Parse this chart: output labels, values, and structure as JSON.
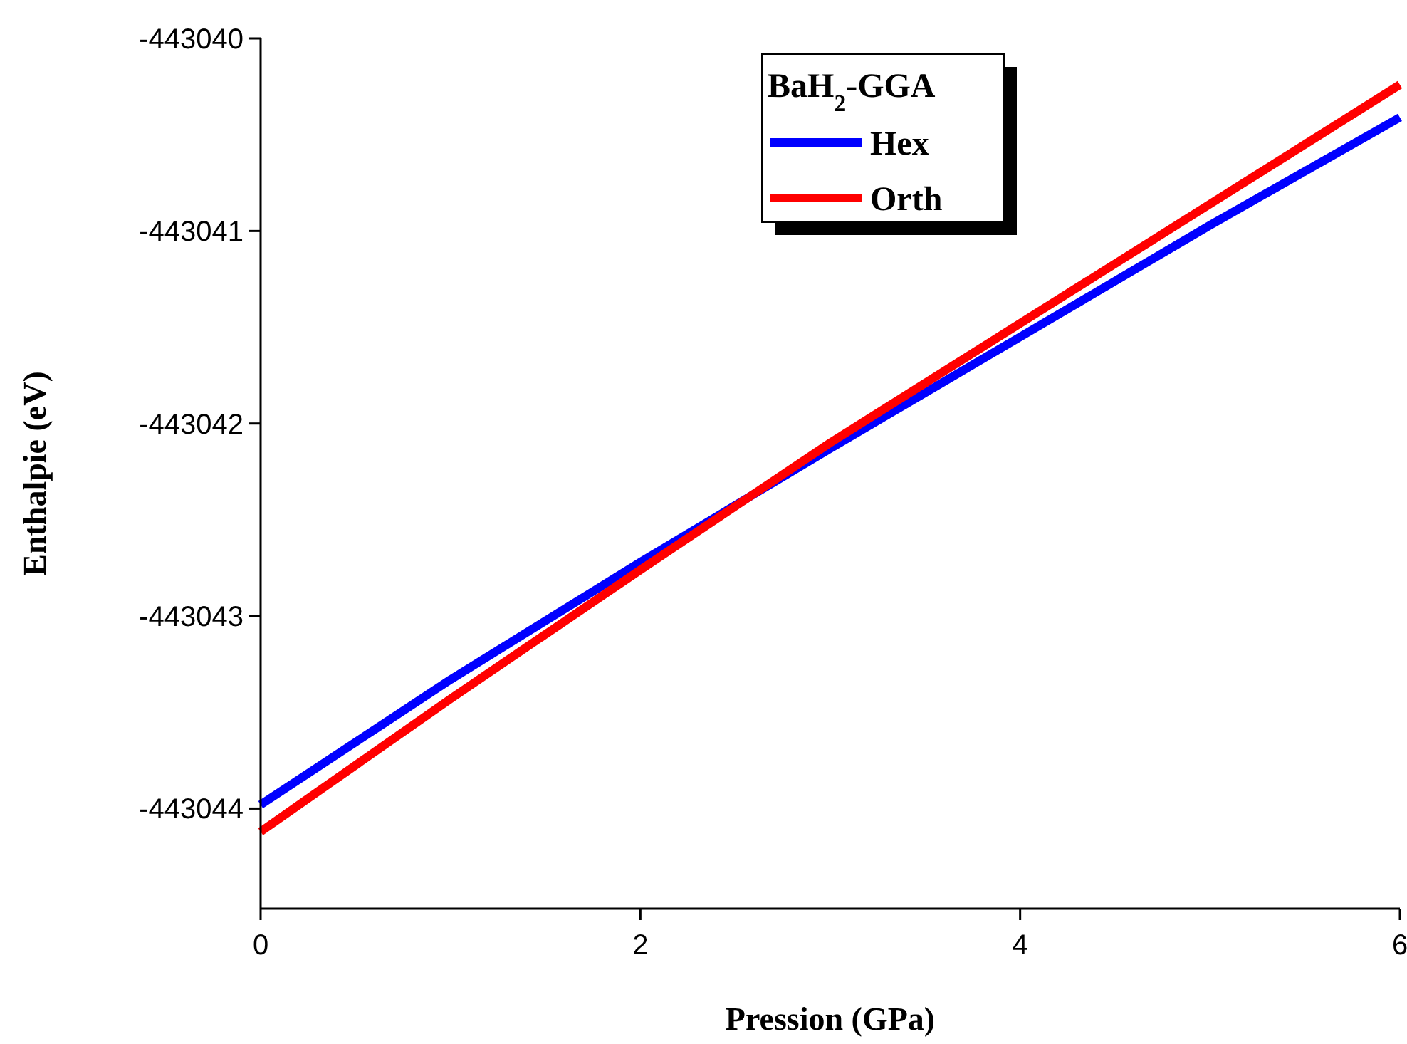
{
  "chart_data": {
    "type": "line",
    "xlabel": "Pression (GPa)",
    "ylabel": "Enthalpie (eV)",
    "legend_title": "BaH$_{2}$-GGA",
    "legend": "top",
    "line_style": "solid",
    "marker": "none",
    "grid": false,
    "xlim": [
      0,
      6
    ],
    "xticks": [
      0,
      2,
      4,
      6
    ],
    "ylim": [
      -443044.52,
      -443040
    ],
    "yticks": [
      -443044,
      -443043,
      -443042,
      -443041,
      -443040
    ],
    "x": [
      0,
      1,
      2,
      3,
      4,
      5,
      6
    ],
    "series": [
      {
        "name": "Hex",
        "color": "#0000ff",
        "values": [
          -443043.98,
          -443043.33,
          -443042.72,
          -443042.13,
          -443041.55,
          -443040.97,
          -443040.41
        ]
      },
      {
        "name": "Orth",
        "color": "#ff0000",
        "values": [
          -443044.12,
          -443043.43,
          -443042.76,
          -443042.1,
          -443041.48,
          -443040.86,
          -443040.24
        ]
      }
    ]
  }
}
